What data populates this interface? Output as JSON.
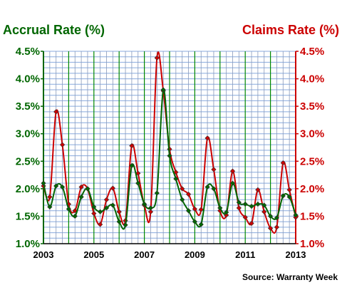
{
  "chart_data": {
    "type": "line",
    "title_left": "Accrual Rate (%)",
    "title_right": "Claims Rate (%)",
    "source": "Source: Warranty Week",
    "x_tick_labels": [
      "2003",
      "2005",
      "2007",
      "2009",
      "2011",
      "2013"
    ],
    "x_range": [
      2003.0,
      2013.0
    ],
    "y_left_ticks": [
      "1.0%",
      "1.5%",
      "2.0%",
      "2.5%",
      "3.0%",
      "3.5%",
      "4.0%",
      "4.5%"
    ],
    "y_right_ticks": [
      "1.0%",
      "1.5%",
      "2.0%",
      "2.5%",
      "3.0%",
      "3.5%",
      "4.0%",
      "4.5%"
    ],
    "ylim": [
      1.0,
      4.5
    ],
    "grid": true,
    "colors": {
      "accrual": "#006600",
      "claims": "#cc0000",
      "grid": "#88aadd",
      "vline": "#008800"
    },
    "x": [
      2003.0,
      2003.25,
      2003.5,
      2003.75,
      2004.0,
      2004.25,
      2004.5,
      2004.75,
      2005.0,
      2005.25,
      2005.5,
      2005.75,
      2006.0,
      2006.25,
      2006.5,
      2006.75,
      2007.0,
      2007.25,
      2007.5,
      2007.75,
      2008.0,
      2008.25,
      2008.5,
      2008.75,
      2009.0,
      2009.25,
      2009.5,
      2009.75,
      2010.0,
      2010.25,
      2010.5,
      2010.75,
      2011.0,
      2011.25,
      2011.5,
      2011.75,
      2012.0,
      2012.25,
      2012.5,
      2012.75,
      2013.0
    ],
    "series": [
      {
        "key": "accrual",
        "values": [
          2.1,
          1.67,
          2.05,
          2.03,
          1.63,
          1.5,
          1.85,
          2.0,
          1.67,
          1.58,
          1.65,
          1.7,
          1.4,
          1.34,
          2.42,
          2.1,
          1.72,
          1.65,
          1.92,
          3.8,
          2.6,
          2.18,
          1.8,
          1.6,
          1.4,
          1.35,
          2.03,
          2.0,
          1.65,
          1.57,
          2.1,
          1.75,
          1.72,
          1.68,
          1.72,
          1.7,
          1.5,
          1.47,
          1.87,
          1.85,
          1.52
        ]
      },
      {
        "key": "claims",
        "values": [
          2.05,
          1.85,
          3.4,
          2.8,
          1.72,
          1.6,
          2.03,
          2.0,
          1.55,
          1.35,
          1.8,
          2.01,
          1.58,
          1.42,
          2.78,
          2.28,
          1.7,
          1.58,
          4.38,
          3.78,
          2.72,
          2.3,
          2.0,
          1.9,
          1.63,
          1.62,
          2.92,
          2.35,
          1.6,
          1.52,
          2.32,
          1.65,
          1.48,
          1.37,
          1.98,
          1.58,
          1.28,
          1.3,
          2.47,
          1.98,
          1.48
        ]
      }
    ]
  }
}
